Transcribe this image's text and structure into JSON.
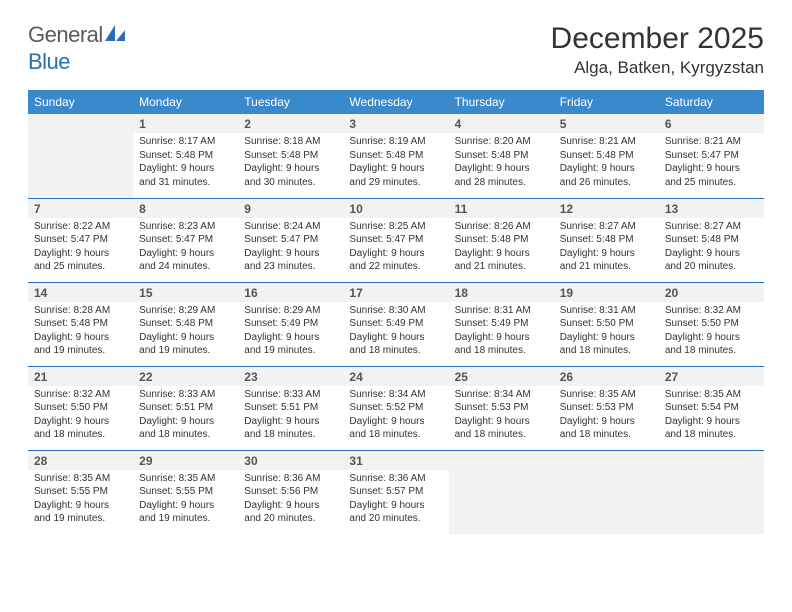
{
  "logo": {
    "text1": "General",
    "text2": "Blue"
  },
  "title": "December 2025",
  "location": "Alga, Batken, Kyrgyzstan",
  "colors": {
    "header_bg": "#3a89cc",
    "border": "#2a6fb5",
    "shade": "#f2f2f2",
    "text": "#333333"
  },
  "weekdays": [
    "Sunday",
    "Monday",
    "Tuesday",
    "Wednesday",
    "Thursday",
    "Friday",
    "Saturday"
  ],
  "days": [
    {
      "n": 1,
      "sr": "8:17 AM",
      "ss": "5:48 PM",
      "dl": "9 hours and 31 minutes."
    },
    {
      "n": 2,
      "sr": "8:18 AM",
      "ss": "5:48 PM",
      "dl": "9 hours and 30 minutes."
    },
    {
      "n": 3,
      "sr": "8:19 AM",
      "ss": "5:48 PM",
      "dl": "9 hours and 29 minutes."
    },
    {
      "n": 4,
      "sr": "8:20 AM",
      "ss": "5:48 PM",
      "dl": "9 hours and 28 minutes."
    },
    {
      "n": 5,
      "sr": "8:21 AM",
      "ss": "5:48 PM",
      "dl": "9 hours and 26 minutes."
    },
    {
      "n": 6,
      "sr": "8:21 AM",
      "ss": "5:47 PM",
      "dl": "9 hours and 25 minutes."
    },
    {
      "n": 7,
      "sr": "8:22 AM",
      "ss": "5:47 PM",
      "dl": "9 hours and 25 minutes."
    },
    {
      "n": 8,
      "sr": "8:23 AM",
      "ss": "5:47 PM",
      "dl": "9 hours and 24 minutes."
    },
    {
      "n": 9,
      "sr": "8:24 AM",
      "ss": "5:47 PM",
      "dl": "9 hours and 23 minutes."
    },
    {
      "n": 10,
      "sr": "8:25 AM",
      "ss": "5:47 PM",
      "dl": "9 hours and 22 minutes."
    },
    {
      "n": 11,
      "sr": "8:26 AM",
      "ss": "5:48 PM",
      "dl": "9 hours and 21 minutes."
    },
    {
      "n": 12,
      "sr": "8:27 AM",
      "ss": "5:48 PM",
      "dl": "9 hours and 21 minutes."
    },
    {
      "n": 13,
      "sr": "8:27 AM",
      "ss": "5:48 PM",
      "dl": "9 hours and 20 minutes."
    },
    {
      "n": 14,
      "sr": "8:28 AM",
      "ss": "5:48 PM",
      "dl": "9 hours and 19 minutes."
    },
    {
      "n": 15,
      "sr": "8:29 AM",
      "ss": "5:48 PM",
      "dl": "9 hours and 19 minutes."
    },
    {
      "n": 16,
      "sr": "8:29 AM",
      "ss": "5:49 PM",
      "dl": "9 hours and 19 minutes."
    },
    {
      "n": 17,
      "sr": "8:30 AM",
      "ss": "5:49 PM",
      "dl": "9 hours and 18 minutes."
    },
    {
      "n": 18,
      "sr": "8:31 AM",
      "ss": "5:49 PM",
      "dl": "9 hours and 18 minutes."
    },
    {
      "n": 19,
      "sr": "8:31 AM",
      "ss": "5:50 PM",
      "dl": "9 hours and 18 minutes."
    },
    {
      "n": 20,
      "sr": "8:32 AM",
      "ss": "5:50 PM",
      "dl": "9 hours and 18 minutes."
    },
    {
      "n": 21,
      "sr": "8:32 AM",
      "ss": "5:50 PM",
      "dl": "9 hours and 18 minutes."
    },
    {
      "n": 22,
      "sr": "8:33 AM",
      "ss": "5:51 PM",
      "dl": "9 hours and 18 minutes."
    },
    {
      "n": 23,
      "sr": "8:33 AM",
      "ss": "5:51 PM",
      "dl": "9 hours and 18 minutes."
    },
    {
      "n": 24,
      "sr": "8:34 AM",
      "ss": "5:52 PM",
      "dl": "9 hours and 18 minutes."
    },
    {
      "n": 25,
      "sr": "8:34 AM",
      "ss": "5:53 PM",
      "dl": "9 hours and 18 minutes."
    },
    {
      "n": 26,
      "sr": "8:35 AM",
      "ss": "5:53 PM",
      "dl": "9 hours and 18 minutes."
    },
    {
      "n": 27,
      "sr": "8:35 AM",
      "ss": "5:54 PM",
      "dl": "9 hours and 18 minutes."
    },
    {
      "n": 28,
      "sr": "8:35 AM",
      "ss": "5:55 PM",
      "dl": "9 hours and 19 minutes."
    },
    {
      "n": 29,
      "sr": "8:35 AM",
      "ss": "5:55 PM",
      "dl": "9 hours and 19 minutes."
    },
    {
      "n": 30,
      "sr": "8:36 AM",
      "ss": "5:56 PM",
      "dl": "9 hours and 20 minutes."
    },
    {
      "n": 31,
      "sr": "8:36 AM",
      "ss": "5:57 PM",
      "dl": "9 hours and 20 minutes."
    }
  ],
  "labels": {
    "sunrise": "Sunrise:",
    "sunset": "Sunset:",
    "daylight": "Daylight:"
  },
  "start_weekday": 1,
  "grid": {
    "rows": 5,
    "cols": 7
  }
}
